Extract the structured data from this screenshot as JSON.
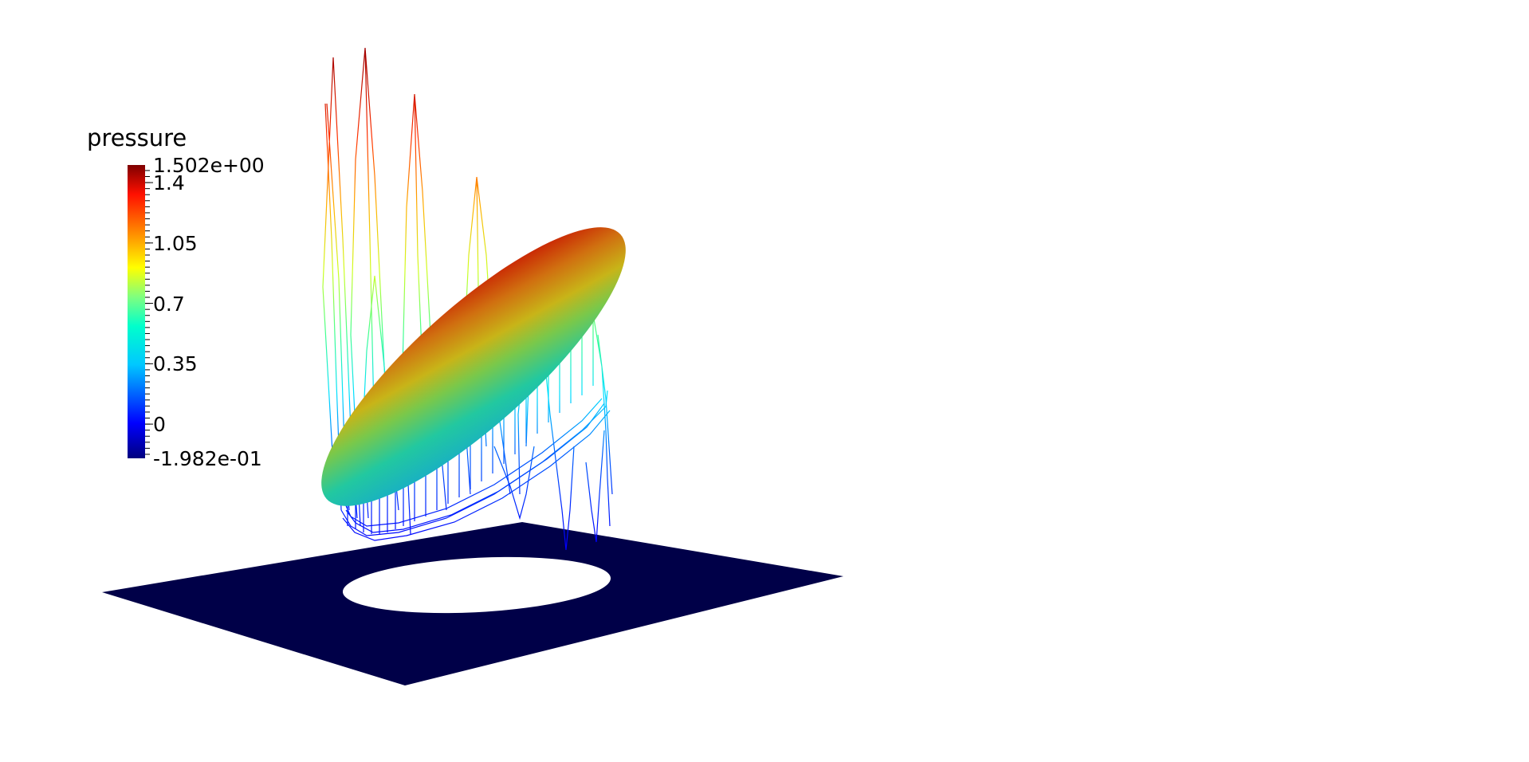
{
  "scalar_bar": {
    "title": "pressure",
    "max_label": "1.502e+00",
    "min_label": "-1.982e-01",
    "range": [
      -0.1982,
      1.502
    ],
    "ticks": [
      {
        "value": 1.4,
        "label": "1.4"
      },
      {
        "value": 1.05,
        "label": "1.05"
      },
      {
        "value": 0.7,
        "label": "0.7"
      },
      {
        "value": 0.35,
        "label": "0.35"
      },
      {
        "value": 0,
        "label": "0"
      }
    ],
    "colormap": [
      "#00007f",
      "#0000ff",
      "#00ffff",
      "#7fff7f",
      "#ffff00",
      "#ff7f00",
      "#ff0000",
      "#7f0000"
    ]
  },
  "colors": {
    "background": "#ffffff",
    "plate": "#000048",
    "hole": "#ffffff"
  }
}
